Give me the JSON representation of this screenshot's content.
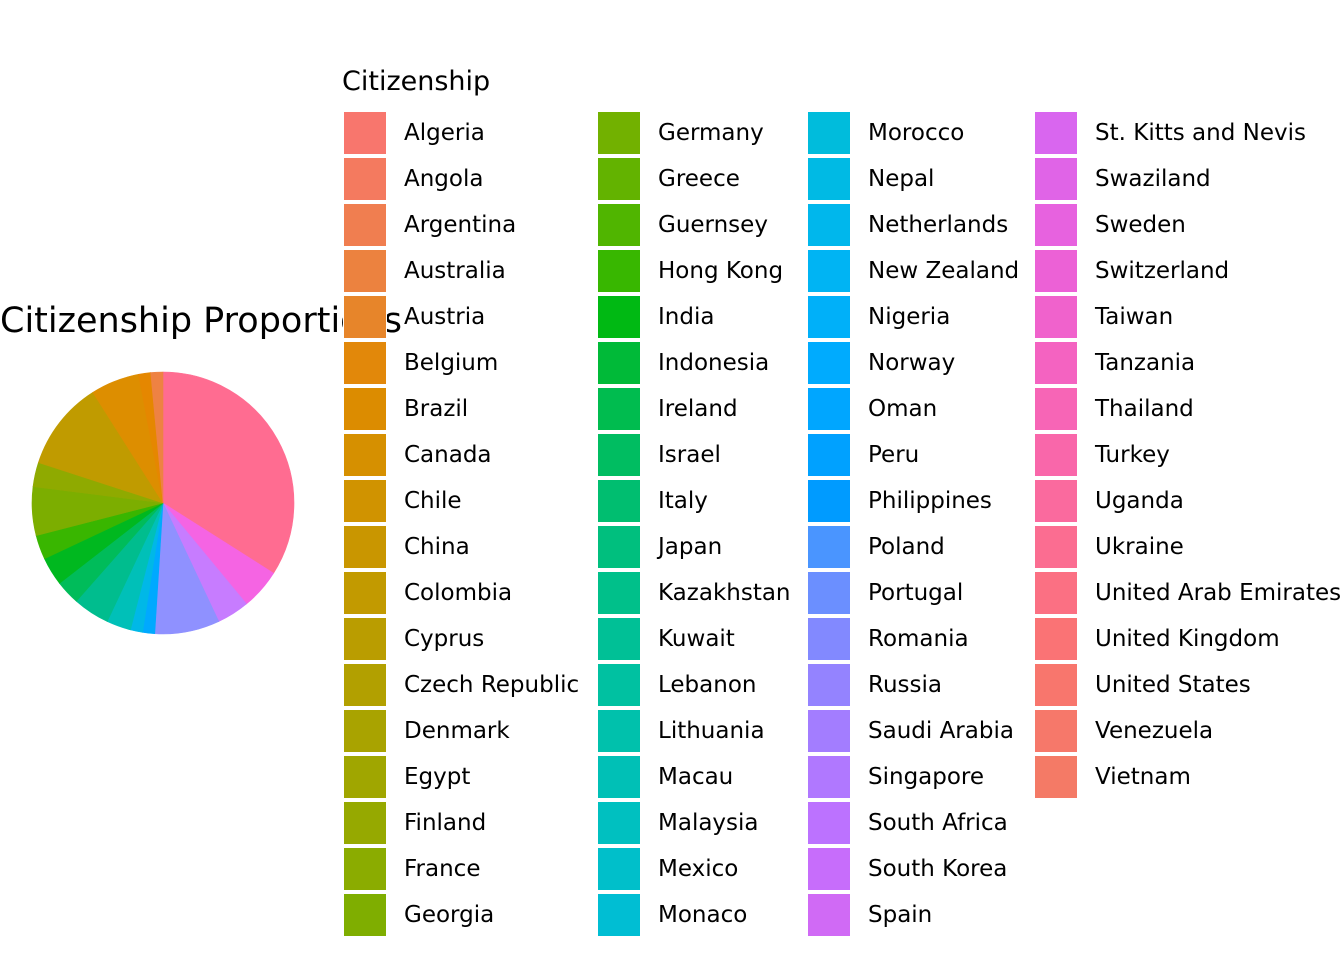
{
  "chart_data": {
    "type": "pie",
    "title": "Citizenship Proportions",
    "legend_title": "Citizenship",
    "legend_position": "right",
    "categories": [
      "Algeria",
      "Angola",
      "Argentina",
      "Australia",
      "Austria",
      "Belgium",
      "Brazil",
      "Canada",
      "Chile",
      "China",
      "Colombia",
      "Cyprus",
      "Czech Republic",
      "Denmark",
      "Egypt",
      "Finland",
      "France",
      "Georgia",
      "Germany",
      "Greece",
      "Guernsey",
      "Hong Kong",
      "India",
      "Indonesia",
      "Ireland",
      "Israel",
      "Italy",
      "Japan",
      "Kazakhstan",
      "Kuwait",
      "Lebanon",
      "Lithuania",
      "Macau",
      "Malaysia",
      "Mexico",
      "Monaco",
      "Morocco",
      "Nepal",
      "Netherlands",
      "New Zealand",
      "Nigeria",
      "Norway",
      "Oman",
      "Peru",
      "Philippines",
      "Poland",
      "Portugal",
      "Romania",
      "Russia",
      "Saudi Arabia",
      "Singapore",
      "South Africa",
      "South Korea",
      "Spain",
      "St. Kitts and Nevis",
      "Swaziland",
      "Sweden",
      "Switzerland",
      "Taiwan",
      "Tanzania",
      "Thailand",
      "Turkey",
      "Uganda",
      "Ukraine",
      "United Arab Emirates",
      "United Kingdom",
      "United States",
      "Venezuela",
      "Vietnam"
    ],
    "colors": [
      "#F8766D",
      "#F47A5F",
      "#F07E50",
      "#EC823F",
      "#E7852A",
      "#E2880A",
      "#DC8C00",
      "#D69000",
      "#D09300",
      "#C99600",
      "#C29A00",
      "#BA9D00",
      "#B2A000",
      "#A9A300",
      "#A0A600",
      "#96A900",
      "#8BAC00",
      "#7FAE00",
      "#72B100",
      "#63B300",
      "#50B500",
      "#38B700",
      "#00B913",
      "#00BA38",
      "#00BC4F",
      "#00BD61",
      "#00BE70",
      "#00BF7E",
      "#00C08A",
      "#00C096",
      "#00C1A1",
      "#00C1AC",
      "#00C0B6",
      "#00C0C0",
      "#00BFCA",
      "#00BED3",
      "#00BCDC",
      "#00BAE4",
      "#00B7EC",
      "#00B4F3",
      "#00B0F9",
      "#00ABFE",
      "#00A6FF",
      "#00A1FF",
      "#009BFF",
      "#4A95FF",
      "#6B8FFF",
      "#8289FF",
      "#9483FF",
      "#A37DFF",
      "#B078FF",
      "#BC72FF",
      "#C76DFB",
      "#D06AF5",
      "#D966EF",
      "#E064E7",
      "#E762DF",
      "#EC61D6",
      "#F062CC",
      "#F463C1",
      "#F765B6",
      "#F967AA",
      "#FA6A9E",
      "#FB6D91",
      "#FB7083",
      "#FA7375",
      "#F8766D",
      "#F6786A",
      "#F47A66"
    ],
    "values": [
      0,
      0,
      0,
      0,
      1.5,
      0,
      0,
      0,
      0,
      0,
      0,
      0,
      0,
      0,
      0,
      0,
      0,
      0,
      0,
      0,
      0,
      0,
      0,
      0,
      0,
      0,
      0,
      0,
      0,
      0,
      0,
      0,
      0,
      0,
      0,
      0,
      0,
      0,
      0,
      0,
      0,
      0,
      0,
      0,
      0,
      0,
      0,
      0,
      0,
      0,
      0,
      0,
      0,
      0,
      0,
      0,
      0,
      0,
      0,
      0,
      0,
      0,
      0,
      0,
      0,
      0,
      34,
      0,
      0
    ]
  },
  "pie_slices": [
    {
      "name": "United States",
      "value": 34.0,
      "color": "#FF6C91"
    },
    {
      "name": "Taiwan",
      "value": 5.0,
      "color": "#F564E3"
    },
    {
      "name": "Singapore",
      "value": 4.0,
      "color": "#C77CFF"
    },
    {
      "name": "Russia",
      "value": 8.0,
      "color": "#8F91FF"
    },
    {
      "name": "Philippines",
      "value": 1.5,
      "color": "#00A9FF"
    },
    {
      "name": "Nigeria",
      "value": 1.5,
      "color": "#00B8E7"
    },
    {
      "name": "Malaysia",
      "value": 3.0,
      "color": "#00C0B8"
    },
    {
      "name": "Japan",
      "value": 4.5,
      "color": "#00BD8E"
    },
    {
      "name": "Ireland",
      "value": 3.0,
      "color": "#00BC5A"
    },
    {
      "name": "India",
      "value": 3.5,
      "color": "#00B81F"
    },
    {
      "name": "Hong Kong",
      "value": 3.0,
      "color": "#39B600"
    },
    {
      "name": "Georgia",
      "value": 6.0,
      "color": "#7CAE00"
    },
    {
      "name": "France",
      "value": 3.0,
      "color": "#8FAA00"
    },
    {
      "name": "Colombia",
      "value": 11.0,
      "color": "#C09B00"
    },
    {
      "name": "Brazil",
      "value": 6.0,
      "color": "#DD8E00"
    },
    {
      "name": "Austria",
      "value": 1.5,
      "color": "#E58700"
    },
    {
      "name": "Australia",
      "value": 1.5,
      "color": "#EE8243"
    }
  ]
}
